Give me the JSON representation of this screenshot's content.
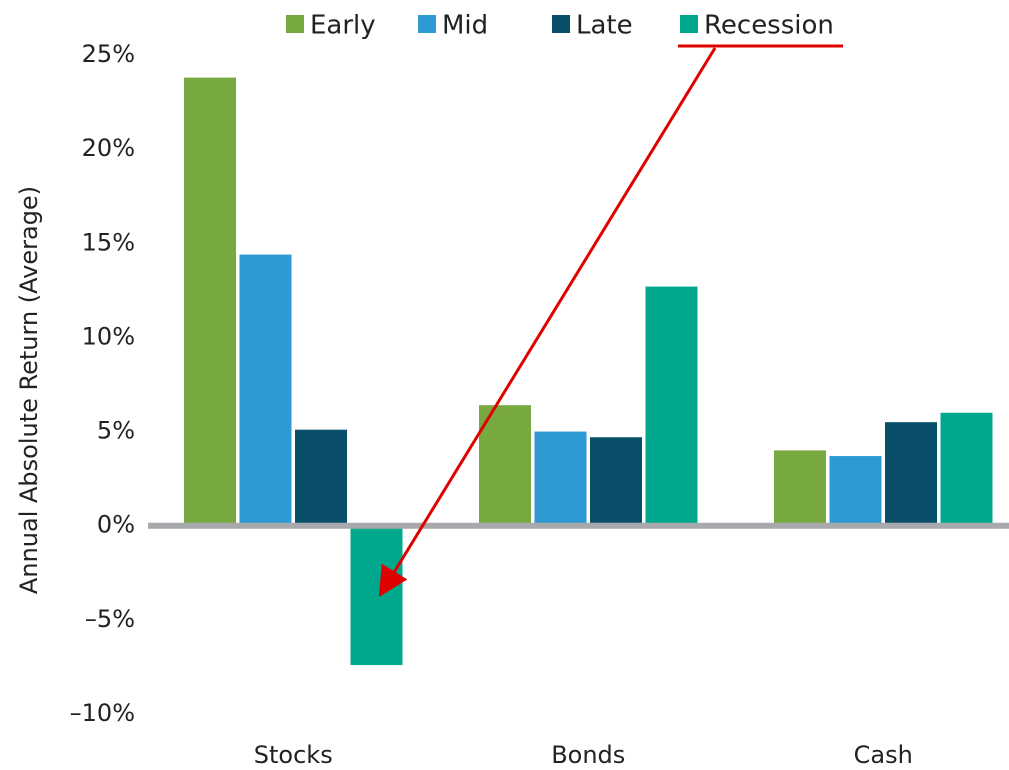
{
  "chart_data": {
    "type": "bar",
    "y_label": "Annual Absolute Return (Average)",
    "categories": [
      "Stocks",
      "Bonds",
      "Cash"
    ],
    "series": [
      {
        "name": "Early",
        "color": "#78a840",
        "values": [
          23.8,
          6.4,
          4.0
        ]
      },
      {
        "name": "Mid",
        "color": "#2e9ad4",
        "values": [
          14.4,
          5.0,
          3.7
        ]
      },
      {
        "name": "Late",
        "color": "#0a4f6a",
        "values": [
          5.1,
          4.7,
          5.5
        ]
      },
      {
        "name": "Recession",
        "color": "#00a88e",
        "values": [
          -7.4,
          12.7,
          6.0
        ]
      }
    ],
    "ylim": [
      -10,
      25
    ],
    "yticks": [
      {
        "value": -10,
        "label": "–10%"
      },
      {
        "value": -5,
        "label": "–5%"
      },
      {
        "value": 0,
        "label": "0%"
      },
      {
        "value": 5,
        "label": "5%"
      },
      {
        "value": 10,
        "label": "10%"
      },
      {
        "value": 15,
        "label": "15%"
      },
      {
        "value": 20,
        "label": "20%"
      },
      {
        "value": 25,
        "label": "25%"
      }
    ],
    "grid": false,
    "legend": "top"
  }
}
